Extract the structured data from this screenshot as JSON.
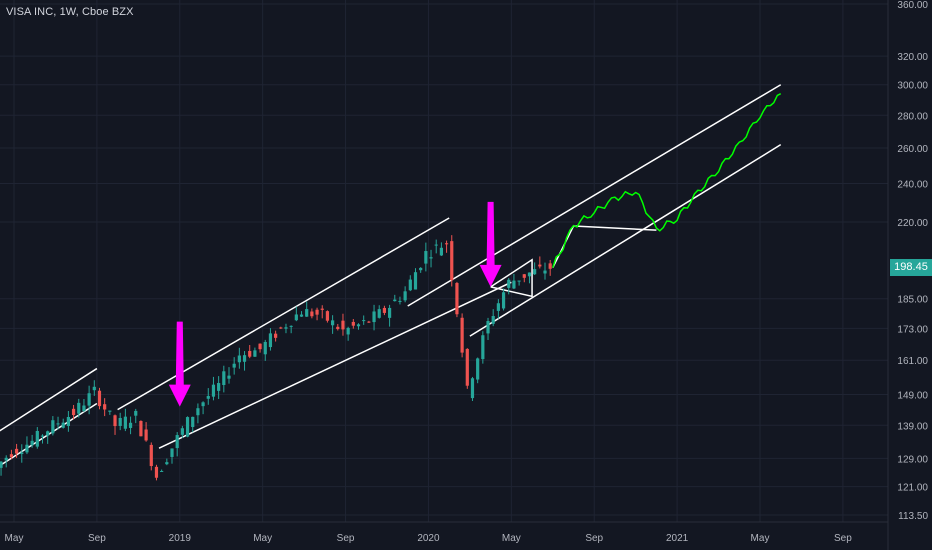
{
  "header": {
    "title": "VISA INC, 1W, Cboe BZX"
  },
  "last_price": "198.45",
  "colors": {
    "background": "#131722",
    "grid": "#1f2433",
    "axis_text": "#b2b5be",
    "up": "#26a69a",
    "down": "#ef5350",
    "channel": "#ffffff",
    "arrow": "#ff00ff",
    "projection": "#00ff00"
  },
  "icons": [
    "arrow-down-icon"
  ],
  "chart_data": {
    "type": "candlestick",
    "y_scale": "log",
    "ylim": [
      112,
      365
    ],
    "y_ticks": [
      "360.00",
      "320.00",
      "300.00",
      "280.00",
      "260.00",
      "240.00",
      "220.00",
      "198.45",
      "185.00",
      "173.00",
      "161.00",
      "149.00",
      "139.00",
      "129.00",
      "121.00",
      "113.50"
    ],
    "x_ticks": [
      "May",
      "Sep",
      "2019",
      "May",
      "Sep",
      "2020",
      "May",
      "Sep",
      "2021",
      "May",
      "Sep"
    ],
    "price_path": [
      [
        "2018-04",
        125
      ],
      [
        "2018-05",
        131
      ],
      [
        "2018-06",
        134
      ],
      [
        "2018-07",
        139
      ],
      [
        "2018-08",
        143
      ],
      [
        "2018-09",
        150
      ],
      [
        "2018-10",
        139
      ],
      [
        "2018-11",
        142
      ],
      [
        "2018-12",
        124
      ],
      [
        "2019-01",
        135
      ],
      [
        "2019-02",
        145
      ],
      [
        "2019-03",
        152
      ],
      [
        "2019-04",
        163
      ],
      [
        "2019-05",
        165
      ],
      [
        "2019-06",
        173
      ],
      [
        "2019-07",
        180
      ],
      [
        "2019-08",
        178
      ],
      [
        "2019-09",
        172
      ],
      [
        "2019-10",
        175
      ],
      [
        "2019-11",
        180
      ],
      [
        "2019-12",
        188
      ],
      [
        "2020-01",
        205
      ],
      [
        "2020-02",
        210
      ],
      [
        "2020-03",
        150
      ],
      [
        "2020-04",
        175
      ],
      [
        "2020-05",
        192
      ],
      [
        "2020-06",
        196
      ],
      [
        "2020-07",
        198.45
      ]
    ],
    "projection": [
      [
        "2020-07",
        198.45
      ],
      [
        "2020-08",
        218
      ],
      [
        "2020-09",
        225
      ],
      [
        "2020-10",
        232
      ],
      [
        "2020-11",
        236
      ],
      [
        "2020-12",
        216
      ],
      [
        "2021-01",
        222
      ],
      [
        "2021-02",
        235
      ],
      [
        "2021-03",
        248
      ],
      [
        "2021-04",
        262
      ],
      [
        "2021-05",
        280
      ],
      [
        "2021-06",
        294
      ]
    ],
    "channels": [
      {
        "start": [
          "2018-03",
          132
        ],
        "end": [
          "2018-09",
          158
        ]
      },
      {
        "start": [
          "2018-03",
          122
        ],
        "end": [
          "2018-09",
          146
        ]
      },
      {
        "start": [
          "2018-10",
          144
        ],
        "end": [
          "2020-02",
          222
        ]
      },
      {
        "start": [
          "2018-12",
          132
        ],
        "end": [
          "2020-05",
          192
        ]
      },
      {
        "start": [
          "2019-12",
          182
        ],
        "end": [
          "2021-06",
          300
        ]
      },
      {
        "start": [
          "2020-03",
          170
        ],
        "end": [
          "2021-06",
          262
        ]
      }
    ],
    "annotations": [
      {
        "type": "arrow",
        "at": [
          "2019-01",
          145
        ]
      },
      {
        "type": "arrow",
        "at": [
          "2020-04",
          190
        ]
      }
    ]
  }
}
